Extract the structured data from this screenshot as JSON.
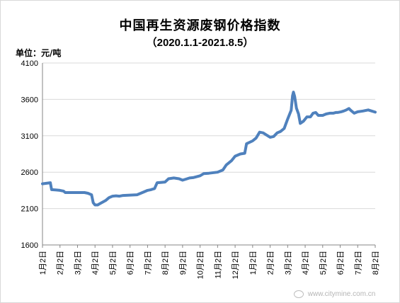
{
  "chart_data": {
    "type": "line",
    "title": "中国再生资源废钢价格指数",
    "subtitle": "（2020.1.1-2021.8.5）",
    "ylabel": "单位：元/吨",
    "xlabel": "",
    "ylim": [
      1600,
      4100
    ],
    "yticks": [
      "4100",
      "3600",
      "3100",
      "2600",
      "2100",
      "1600"
    ],
    "ytick_values": [
      4100,
      3600,
      3100,
      2600,
      2100,
      1600
    ],
    "categories": [
      "1月2日",
      "2月2日",
      "3月2日",
      "4月2日",
      "5月2日",
      "6月2日",
      "7月2日",
      "8月2日",
      "9月2日",
      "10月2日",
      "11月2日",
      "12月2日",
      "1月2日",
      "2月2日",
      "3月2日",
      "4月2日",
      "5月2日",
      "6月2日",
      "7月2日",
      "8月2日"
    ],
    "grid": true,
    "legend": "none",
    "series": [
      {
        "color": "#4f81bd",
        "points": [
          [
            0.0,
            2440
          ],
          [
            0.3,
            2450
          ],
          [
            0.45,
            2455
          ],
          [
            0.52,
            2360
          ],
          [
            0.8,
            2355
          ],
          [
            1.0,
            2350
          ],
          [
            1.2,
            2340
          ],
          [
            1.3,
            2320
          ],
          [
            1.6,
            2320
          ],
          [
            2.0,
            2320
          ],
          [
            2.4,
            2320
          ],
          [
            2.6,
            2310
          ],
          [
            2.8,
            2290
          ],
          [
            2.9,
            2180
          ],
          [
            3.0,
            2150
          ],
          [
            3.15,
            2150
          ],
          [
            3.3,
            2170
          ],
          [
            3.6,
            2210
          ],
          [
            3.8,
            2250
          ],
          [
            4.0,
            2270
          ],
          [
            4.2,
            2275
          ],
          [
            4.4,
            2270
          ],
          [
            4.6,
            2280
          ],
          [
            5.0,
            2285
          ],
          [
            5.4,
            2290
          ],
          [
            5.8,
            2330
          ],
          [
            6.0,
            2350
          ],
          [
            6.2,
            2360
          ],
          [
            6.4,
            2375
          ],
          [
            6.55,
            2455
          ],
          [
            6.8,
            2460
          ],
          [
            7.0,
            2465
          ],
          [
            7.2,
            2510
          ],
          [
            7.5,
            2520
          ],
          [
            7.8,
            2510
          ],
          [
            8.0,
            2490
          ],
          [
            8.2,
            2505
          ],
          [
            8.4,
            2520
          ],
          [
            8.6,
            2525
          ],
          [
            9.0,
            2550
          ],
          [
            9.2,
            2580
          ],
          [
            9.5,
            2585
          ],
          [
            10.0,
            2600
          ],
          [
            10.3,
            2630
          ],
          [
            10.5,
            2700
          ],
          [
            10.8,
            2760
          ],
          [
            11.0,
            2820
          ],
          [
            11.3,
            2850
          ],
          [
            11.55,
            2860
          ],
          [
            11.65,
            2990
          ],
          [
            12.0,
            3030
          ],
          [
            12.2,
            3070
          ],
          [
            12.4,
            3150
          ],
          [
            12.6,
            3140
          ],
          [
            12.8,
            3110
          ],
          [
            13.0,
            3080
          ],
          [
            13.2,
            3090
          ],
          [
            13.4,
            3140
          ],
          [
            13.6,
            3160
          ],
          [
            13.8,
            3200
          ],
          [
            14.0,
            3330
          ],
          [
            14.2,
            3450
          ],
          [
            14.28,
            3650
          ],
          [
            14.33,
            3700
          ],
          [
            14.4,
            3640
          ],
          [
            14.5,
            3480
          ],
          [
            14.62,
            3400
          ],
          [
            14.72,
            3270
          ],
          [
            14.9,
            3300
          ],
          [
            15.1,
            3360
          ],
          [
            15.3,
            3360
          ],
          [
            15.45,
            3410
          ],
          [
            15.6,
            3420
          ],
          [
            15.75,
            3380
          ],
          [
            16.0,
            3380
          ],
          [
            16.2,
            3400
          ],
          [
            16.4,
            3410
          ],
          [
            16.6,
            3410
          ],
          [
            16.75,
            3420
          ],
          [
            16.85,
            3420
          ],
          [
            17.05,
            3430
          ],
          [
            17.2,
            3440
          ],
          [
            17.35,
            3455
          ],
          [
            17.5,
            3475
          ],
          [
            17.6,
            3450
          ],
          [
            17.8,
            3410
          ],
          [
            18.0,
            3430
          ],
          [
            18.3,
            3440
          ],
          [
            18.6,
            3455
          ],
          [
            19.0,
            3425
          ]
        ]
      }
    ]
  },
  "watermark": {
    "text": "www.citymine.com.cn"
  }
}
